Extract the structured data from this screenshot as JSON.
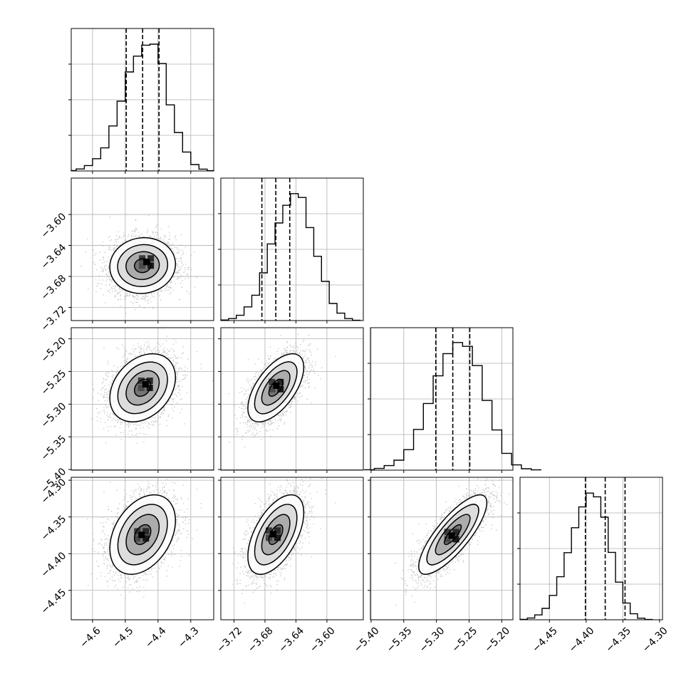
{
  "chart_data": [
    {
      "type": "histogram",
      "position": "row 1, column 1",
      "param_index": 0,
      "bins": [
        [
          -4.665,
          -4.65,
          0.3
        ],
        [
          -4.65,
          -4.625,
          1.4
        ],
        [
          -4.625,
          -4.6,
          3.8
        ],
        [
          -4.6,
          -4.575,
          8.6
        ],
        [
          -4.575,
          -4.55,
          16.2
        ],
        [
          -4.55,
          -4.525,
          31.6
        ],
        [
          -4.525,
          -4.5,
          49.0
        ],
        [
          -4.5,
          -4.475,
          69.5
        ],
        [
          -4.475,
          -4.45,
          80.6
        ],
        [
          -4.45,
          -4.425,
          88.3
        ],
        [
          -4.425,
          -4.4,
          89.0
        ],
        [
          -4.4,
          -4.375,
          75.4
        ],
        [
          -4.375,
          -4.35,
          46.4
        ],
        [
          -4.35,
          -4.325,
          27.0
        ],
        [
          -4.325,
          -4.3,
          13.3
        ],
        [
          -4.3,
          -4.275,
          4.5
        ],
        [
          -4.275,
          -4.25,
          1.3
        ],
        [
          -4.25,
          -4.23,
          0.2
        ]
      ],
      "quantiles": [
        -4.497,
        -4.447,
        -4.397
      ]
    },
    {
      "type": "histogram",
      "position": "row 2, column 2",
      "param_index": 1,
      "bins": [
        [
          -3.737,
          -3.727,
          0.4
        ],
        [
          -3.727,
          -3.717,
          1.4
        ],
        [
          -3.717,
          -3.707,
          3.7
        ],
        [
          -3.707,
          -3.697,
          9.6
        ],
        [
          -3.697,
          -3.687,
          17.8
        ],
        [
          -3.687,
          -3.677,
          33.5
        ],
        [
          -3.677,
          -3.667,
          53.8
        ],
        [
          -3.667,
          -3.657,
          68.5
        ],
        [
          -3.657,
          -3.647,
          80.9
        ],
        [
          -3.647,
          -3.637,
          89.1
        ],
        [
          -3.637,
          -3.627,
          86.4
        ],
        [
          -3.627,
          -3.617,
          65.3
        ],
        [
          -3.617,
          -3.607,
          45.1
        ],
        [
          -3.607,
          -3.597,
          27.5
        ],
        [
          -3.597,
          -3.587,
          12.0
        ],
        [
          -3.587,
          -3.577,
          5.2
        ],
        [
          -3.577,
          -3.567,
          1.4
        ],
        [
          -3.567,
          -3.557,
          0.2
        ]
      ],
      "quantiles": [
        -3.684,
        -3.666,
        -3.648
      ]
    },
    {
      "type": "histogram",
      "position": "row 3, column 3",
      "param_index": 2,
      "bins": [
        [
          -5.41,
          -5.395,
          0.3
        ],
        [
          -5.395,
          -5.38,
          1.2
        ],
        [
          -5.38,
          -5.365,
          3.2
        ],
        [
          -5.365,
          -5.35,
          7.0
        ],
        [
          -5.35,
          -5.335,
          14.4
        ],
        [
          -5.335,
          -5.32,
          28.6
        ],
        [
          -5.32,
          -5.305,
          46.8
        ],
        [
          -5.305,
          -5.29,
          66.2
        ],
        [
          -5.29,
          -5.275,
          81.8
        ],
        [
          -5.275,
          -5.26,
          89.6
        ],
        [
          -5.26,
          -5.245,
          86.9
        ],
        [
          -5.245,
          -5.23,
          73.4
        ],
        [
          -5.23,
          -5.215,
          48.9
        ],
        [
          -5.215,
          -5.2,
          28.2
        ],
        [
          -5.2,
          -5.185,
          11.8
        ],
        [
          -5.185,
          -5.17,
          3.7
        ],
        [
          -5.17,
          -5.155,
          1.0
        ],
        [
          -5.155,
          -5.14,
          0.2
        ]
      ],
      "quantiles": [
        -5.301,
        -5.275,
        -5.249
      ]
    },
    {
      "type": "histogram",
      "position": "row 4, column 4",
      "param_index": 3,
      "bins": [
        [
          -4.49,
          -4.48,
          0.3
        ],
        [
          -4.48,
          -4.47,
          1.2
        ],
        [
          -4.47,
          -4.46,
          3.4
        ],
        [
          -4.46,
          -4.45,
          8.0
        ],
        [
          -4.45,
          -4.44,
          17.1
        ],
        [
          -4.44,
          -4.43,
          30.2
        ],
        [
          -4.43,
          -4.42,
          47.1
        ],
        [
          -4.42,
          -4.41,
          64.6
        ],
        [
          -4.41,
          -4.4,
          79.2
        ],
        [
          -4.4,
          -4.39,
          88.9
        ],
        [
          -4.39,
          -4.38,
          86.3
        ],
        [
          -4.38,
          -4.37,
          72.0
        ],
        [
          -4.37,
          -4.36,
          47.3
        ],
        [
          -4.36,
          -4.35,
          26.4
        ],
        [
          -4.35,
          -4.34,
          11.7
        ],
        [
          -4.34,
          -4.33,
          4.2
        ],
        [
          -4.33,
          -4.32,
          1.1
        ],
        [
          -4.32,
          -4.31,
          0.2
        ]
      ],
      "quantiles": [
        -4.401,
        -4.374,
        -4.347
      ]
    },
    {
      "type": "contour-scatter",
      "position": "row 2, column 1",
      "x_param": 0,
      "y_param": 1,
      "center": [
        -4.447,
        -3.666
      ],
      "sigma": [
        0.05,
        0.018
      ],
      "corr": 0.05,
      "mode": [
        -4.432,
        -3.66
      ]
    },
    {
      "type": "contour-scatter",
      "position": "row 3, column 1",
      "x_param": 0,
      "y_param": 2,
      "center": [
        -4.447,
        -5.275
      ],
      "sigma": [
        0.05,
        0.026
      ],
      "corr": 0.3,
      "mode": [
        -4.435,
        -5.268
      ]
    },
    {
      "type": "contour-scatter",
      "position": "row 3, column 2",
      "x_param": 1,
      "y_param": 2,
      "center": [
        -3.666,
        -5.275
      ],
      "sigma": [
        0.018,
        0.026
      ],
      "corr": 0.6,
      "mode": [
        -3.664,
        -5.27
      ]
    },
    {
      "type": "contour-scatter",
      "position": "row 4, column 1",
      "x_param": 0,
      "y_param": 3,
      "center": [
        -4.447,
        -4.374
      ],
      "sigma": [
        0.05,
        0.027
      ],
      "corr": 0.35,
      "mode": [
        -4.447,
        -4.373
      ]
    },
    {
      "type": "contour-scatter",
      "position": "row 4, column 2",
      "x_param": 1,
      "y_param": 3,
      "center": [
        -3.666,
        -4.374
      ],
      "sigma": [
        0.018,
        0.027
      ],
      "corr": 0.55,
      "mode": [
        -3.668,
        -4.372
      ]
    },
    {
      "type": "contour-scatter",
      "position": "row 4, column 3",
      "x_param": 2,
      "y_param": 3,
      "center": [
        -5.275,
        -4.374
      ],
      "sigma": [
        0.026,
        0.027
      ],
      "corr": 0.8,
      "mode": [
        -5.275,
        -4.374
      ]
    }
  ],
  "params": [
    {
      "range": [
        -4.665,
        -4.23
      ],
      "ticks": [
        -4.6,
        -4.5,
        -4.4,
        -4.3
      ],
      "tick_labels": [
        "−4.6",
        "−4.5",
        "−4.4",
        "−4.3"
      ]
    },
    {
      "range": [
        -3.737,
        -3.553
      ],
      "ticks": [
        -3.72,
        -3.68,
        -3.64,
        -3.6
      ],
      "tick_labels": [
        "−3.72",
        "−3.68",
        "−3.64",
        "−3.60"
      ]
    },
    {
      "range": [
        -5.401,
        -5.183
      ],
      "ticks": [
        -5.4,
        -5.35,
        -5.3,
        -5.25,
        -5.2
      ],
      "tick_labels": [
        "−5.40",
        "−5.35",
        "−5.30",
        "−5.25",
        "−5.20"
      ]
    },
    {
      "range": [
        -4.49,
        -4.296
      ],
      "ticks": [
        -4.45,
        -4.4,
        -4.35,
        -4.3
      ],
      "tick_labels": [
        "−4.45",
        "−4.40",
        "−4.35",
        "−4.30"
      ]
    }
  ],
  "hist_ylim": [
    0,
    100
  ],
  "hist_yticks": [
    0,
    25,
    50,
    75
  ],
  "levels_sigma": [
    0.5,
    1.0,
    1.5,
    2.0
  ],
  "grid": true,
  "colors": {
    "points": "#b4b4b4",
    "density_dark": "#000000",
    "lines": "#000000",
    "grid": "#b0b0b0"
  }
}
